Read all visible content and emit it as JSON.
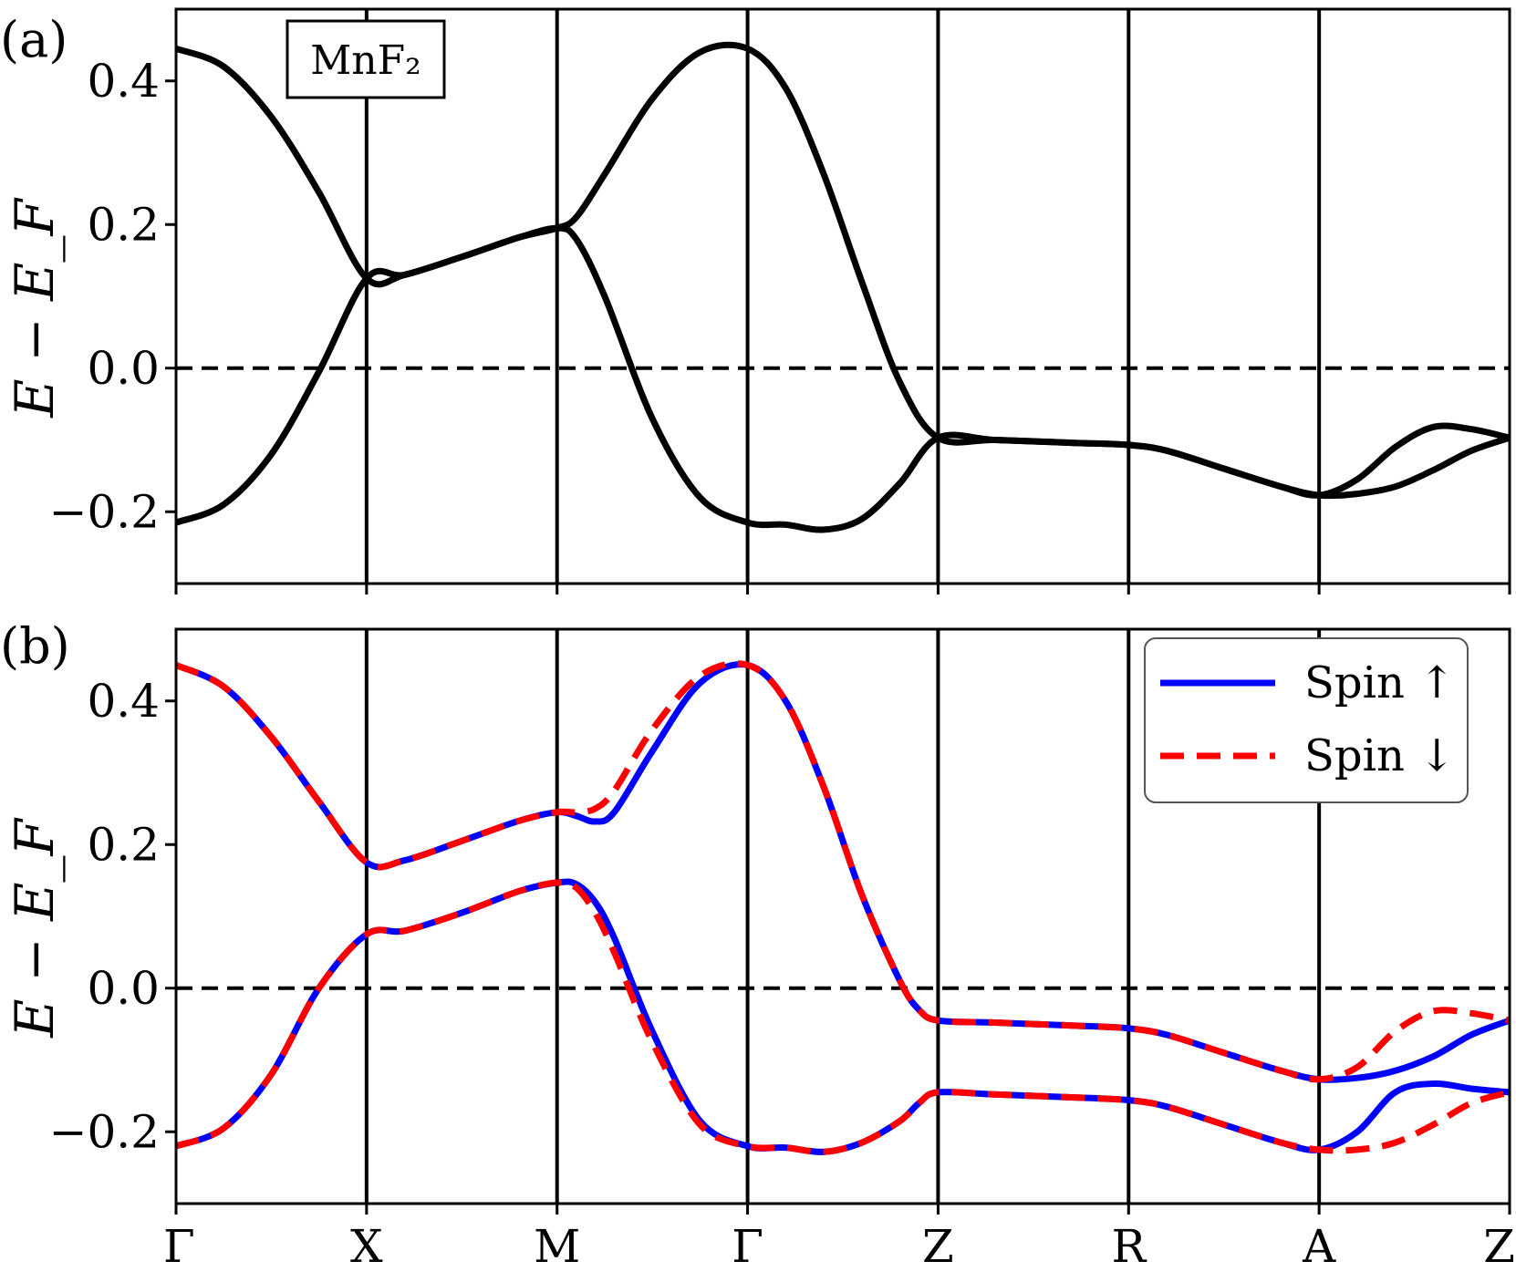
{
  "chart_data": [
    {
      "type": "line",
      "panel_label": "(a)",
      "annotation": "MnF₂",
      "ylabel": "E − E_F",
      "ylim": [
        -0.3,
        0.5
      ],
      "yticks": [
        -0.2,
        0.0,
        0.2,
        0.4
      ],
      "ytick_labels": [
        "−0.2",
        "0.0",
        "0.2",
        "0.4"
      ],
      "kpath": [
        "Γ",
        "X",
        "M",
        "Γ",
        "Z",
        "R",
        "A",
        "Z"
      ],
      "fermi_level": 0.0,
      "grid": false,
      "series": [
        {
          "color": "#000000",
          "style": "solid",
          "x": [
            0,
            0.25,
            0.5,
            0.75,
            1,
            1.2,
            1.5,
            1.8,
            2,
            2.1,
            2.25,
            2.5,
            2.75,
            3,
            3.2,
            3.4,
            3.6,
            3.8,
            4,
            4.3,
            4.7,
            5,
            5.2,
            5.5,
            5.8,
            6,
            6.2,
            6.4,
            6.6,
            6.8,
            7
          ],
          "y": [
            0.445,
            0.42,
            0.35,
            0.245,
            0.125,
            0.13,
            0.155,
            0.182,
            0.195,
            0.21,
            0.27,
            0.375,
            0.44,
            0.445,
            0.39,
            0.27,
            0.12,
            -0.02,
            -0.097,
            -0.1,
            -0.104,
            -0.107,
            -0.115,
            -0.14,
            -0.165,
            -0.177,
            -0.155,
            -0.11,
            -0.082,
            -0.085,
            -0.097
          ]
        },
        {
          "color": "#000000",
          "style": "solid",
          "x": [
            0,
            0.25,
            0.5,
            0.75,
            1,
            1.2,
            1.5,
            1.8,
            2,
            2.1,
            2.25,
            2.5,
            2.75,
            3,
            3.2,
            3.4,
            3.6,
            3.8,
            4,
            4.3,
            4.7,
            5,
            5.2,
            5.5,
            5.8,
            6,
            6.2,
            6.4,
            6.6,
            6.8,
            7
          ],
          "y": [
            -0.215,
            -0.19,
            -0.12,
            -0.005,
            0.125,
            0.13,
            0.155,
            0.182,
            0.195,
            0.18,
            0.1,
            -0.07,
            -0.18,
            -0.215,
            -0.218,
            -0.225,
            -0.21,
            -0.16,
            -0.097,
            -0.1,
            -0.104,
            -0.107,
            -0.115,
            -0.14,
            -0.165,
            -0.177,
            -0.175,
            -0.165,
            -0.142,
            -0.115,
            -0.097
          ]
        }
      ]
    },
    {
      "type": "line",
      "panel_label": "(b)",
      "ylabel": "E − E_F",
      "ylim": [
        -0.3,
        0.5
      ],
      "yticks": [
        -0.2,
        0.0,
        0.2,
        0.4
      ],
      "ytick_labels": [
        "−0.2",
        "0.0",
        "0.2",
        "0.4"
      ],
      "kpath": [
        "Γ",
        "X",
        "M",
        "Γ",
        "Z",
        "R",
        "A",
        "Z"
      ],
      "fermi_level": 0.0,
      "grid": false,
      "legend": {
        "placement": "top-right",
        "entries": [
          {
            "label": "Spin ↑",
            "color": "#0000ff",
            "style": "solid"
          },
          {
            "label": "Spin ↓",
            "color": "#ff0000",
            "style": "dashed"
          }
        ]
      },
      "series": [
        {
          "name": "Spin ↑",
          "color": "#0000ff",
          "style": "solid",
          "x": [
            0,
            0.25,
            0.5,
            0.75,
            1,
            1.2,
            1.5,
            1.8,
            2,
            2.1,
            2.2,
            2.3,
            2.5,
            2.75,
            3,
            3.2,
            3.4,
            3.6,
            3.8,
            3.9,
            4,
            4.3,
            4.7,
            5,
            5.2,
            5.5,
            5.8,
            6,
            6.2,
            6.4,
            6.6,
            6.8,
            7
          ],
          "y": [
            0.45,
            0.42,
            0.35,
            0.26,
            0.175,
            0.178,
            0.205,
            0.233,
            0.245,
            0.24,
            0.232,
            0.245,
            0.33,
            0.425,
            0.45,
            0.4,
            0.28,
            0.13,
            0.01,
            -0.03,
            -0.045,
            -0.048,
            -0.052,
            -0.056,
            -0.065,
            -0.09,
            -0.115,
            -0.127,
            -0.125,
            -0.115,
            -0.095,
            -0.065,
            -0.045
          ]
        },
        {
          "name": "Spin ↓",
          "color": "#ff0000",
          "style": "dashed",
          "x": [
            0,
            0.25,
            0.5,
            0.75,
            1,
            1.2,
            1.5,
            1.8,
            2,
            2.1,
            2.2,
            2.3,
            2.5,
            2.75,
            3,
            3.2,
            3.4,
            3.6,
            3.8,
            3.9,
            4,
            4.3,
            4.7,
            5,
            5.2,
            5.5,
            5.8,
            6,
            6.2,
            6.4,
            6.6,
            6.8,
            7
          ],
          "y": [
            0.45,
            0.42,
            0.35,
            0.26,
            0.175,
            0.178,
            0.205,
            0.233,
            0.245,
            0.245,
            0.25,
            0.275,
            0.36,
            0.435,
            0.45,
            0.4,
            0.28,
            0.13,
            0.01,
            -0.03,
            -0.045,
            -0.048,
            -0.052,
            -0.056,
            -0.065,
            -0.09,
            -0.115,
            -0.127,
            -0.11,
            -0.06,
            -0.032,
            -0.035,
            -0.045
          ]
        },
        {
          "name": "Spin ↑",
          "color": "#0000ff",
          "style": "solid",
          "x": [
            0,
            0.25,
            0.5,
            0.75,
            1,
            1.2,
            1.5,
            1.8,
            2,
            2.1,
            2.2,
            2.3,
            2.5,
            2.75,
            3,
            3.2,
            3.4,
            3.6,
            3.8,
            3.9,
            4,
            4.3,
            4.7,
            5,
            5.2,
            5.5,
            5.8,
            6,
            6.2,
            6.4,
            6.6,
            6.8,
            7
          ],
          "y": [
            -0.22,
            -0.195,
            -0.12,
            0,
            0.075,
            0.08,
            0.105,
            0.135,
            0.147,
            0.145,
            0.12,
            0.07,
            -0.06,
            -0.185,
            -0.22,
            -0.222,
            -0.228,
            -0.215,
            -0.185,
            -0.16,
            -0.145,
            -0.148,
            -0.152,
            -0.156,
            -0.165,
            -0.19,
            -0.215,
            -0.225,
            -0.2,
            -0.145,
            -0.133,
            -0.14,
            -0.145
          ]
        },
        {
          "name": "Spin ↓",
          "color": "#ff0000",
          "style": "dashed",
          "x": [
            0,
            0.25,
            0.5,
            0.75,
            1,
            1.2,
            1.5,
            1.8,
            2,
            2.1,
            2.2,
            2.3,
            2.5,
            2.75,
            3,
            3.2,
            3.4,
            3.6,
            3.8,
            3.9,
            4,
            4.3,
            4.7,
            5,
            5.2,
            5.5,
            5.8,
            6,
            6.2,
            6.4,
            6.6,
            6.8,
            7
          ],
          "y": [
            -0.22,
            -0.195,
            -0.12,
            0,
            0.075,
            0.08,
            0.105,
            0.135,
            0.147,
            0.14,
            0.105,
            0.05,
            -0.075,
            -0.19,
            -0.22,
            -0.222,
            -0.228,
            -0.215,
            -0.185,
            -0.16,
            -0.145,
            -0.148,
            -0.152,
            -0.156,
            -0.165,
            -0.19,
            -0.215,
            -0.225,
            -0.225,
            -0.215,
            -0.19,
            -0.16,
            -0.145
          ]
        }
      ]
    }
  ]
}
